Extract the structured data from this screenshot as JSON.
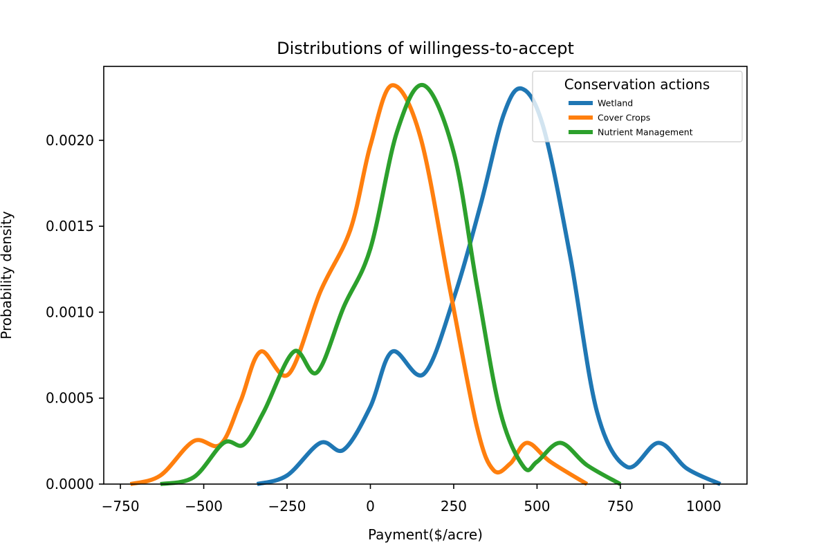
{
  "chart_data": {
    "type": "line",
    "title": "Distributions of willingess-to-accept",
    "xlabel": "Payment($/acre)",
    "ylabel": "Probability density",
    "xlim": [
      -800,
      1130
    ],
    "ylim": [
      0,
      0.00243
    ],
    "x_ticks": [
      -750,
      -500,
      -250,
      0,
      250,
      500,
      750,
      1000
    ],
    "x_tick_labels": [
      "−750",
      "−500",
      "−250",
      "0",
      "250",
      "500",
      "750",
      "1000"
    ],
    "y_ticks": [
      0,
      0.0005,
      0.001,
      0.0015,
      0.002
    ],
    "y_tick_labels": [
      "0.0000",
      "0.0005",
      "0.0010",
      "0.0015",
      "0.0020"
    ],
    "grid": false,
    "legend": {
      "title": "Conservation actions",
      "placement": "top-right"
    },
    "series": [
      {
        "name": "Wetland",
        "color": "#1f77b4",
        "points": [
          [
            -340,
            0.0
          ],
          [
            -250,
            5e-05
          ],
          [
            -150,
            0.00024
          ],
          [
            -80,
            0.0002
          ],
          [
            0,
            0.00045
          ],
          [
            65,
            0.00077
          ],
          [
            160,
            0.00064
          ],
          [
            250,
            0.00108
          ],
          [
            330,
            0.00162
          ],
          [
            400,
            0.00215
          ],
          [
            455,
            0.0023
          ],
          [
            520,
            0.00207
          ],
          [
            600,
            0.00132
          ],
          [
            680,
            0.00042
          ],
          [
            770,
            0.0001
          ],
          [
            865,
            0.00024
          ],
          [
            950,
            9e-05
          ],
          [
            1050,
            0.0
          ]
        ]
      },
      {
        "name": "Cover Crops",
        "color": "#ff7f0e",
        "points": [
          [
            -720,
            0.0
          ],
          [
            -630,
            5e-05
          ],
          [
            -530,
            0.00025
          ],
          [
            -450,
            0.00023
          ],
          [
            -390,
            0.00048
          ],
          [
            -330,
            0.00077
          ],
          [
            -245,
            0.00064
          ],
          [
            -150,
            0.00112
          ],
          [
            -60,
            0.00148
          ],
          [
            0,
            0.00197
          ],
          [
            65,
            0.00232
          ],
          [
            150,
            0.00202
          ],
          [
            240,
            0.00112
          ],
          [
            320,
            0.00033
          ],
          [
            370,
            8e-05
          ],
          [
            420,
            0.00012
          ],
          [
            470,
            0.00024
          ],
          [
            540,
            0.00013
          ],
          [
            650,
            0.0
          ]
        ]
      },
      {
        "name": "Nutrient Management",
        "color": "#2ca02c",
        "points": [
          [
            -630,
            0.0
          ],
          [
            -530,
            4e-05
          ],
          [
            -440,
            0.00024
          ],
          [
            -380,
            0.00023
          ],
          [
            -320,
            0.00042
          ],
          [
            -230,
            0.00077
          ],
          [
            -160,
            0.00065
          ],
          [
            -80,
            0.00103
          ],
          [
            0,
            0.00137
          ],
          [
            80,
            0.00205
          ],
          [
            160,
            0.00232
          ],
          [
            250,
            0.00193
          ],
          [
            320,
            0.00115
          ],
          [
            390,
            0.00042
          ],
          [
            460,
            0.0001
          ],
          [
            500,
            0.00013
          ],
          [
            570,
            0.00024
          ],
          [
            650,
            0.00011
          ],
          [
            750,
            0.0
          ]
        ]
      }
    ]
  }
}
